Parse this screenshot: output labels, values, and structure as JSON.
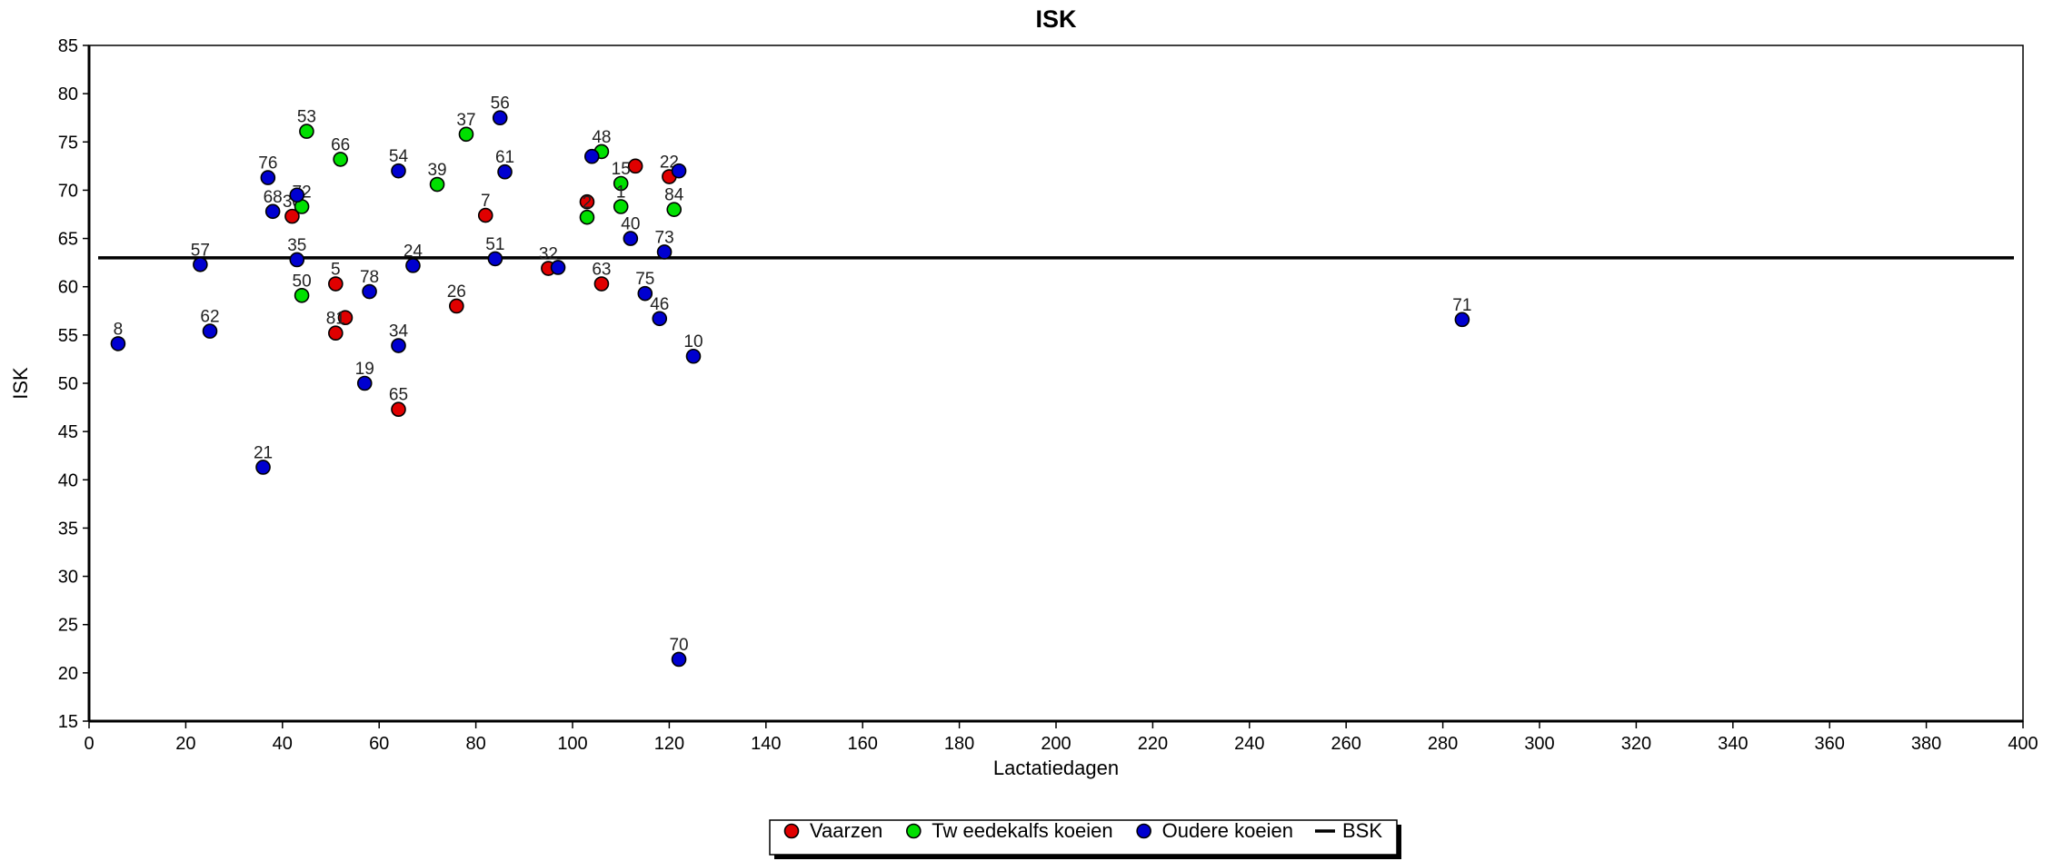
{
  "chart_data": {
    "type": "scatter",
    "title": "ISK",
    "xlabel": "Lactatiedagen",
    "ylabel": "ISK",
    "xlim": [
      0,
      400
    ],
    "ylim": [
      15,
      85
    ],
    "xticks": [
      0,
      20,
      40,
      60,
      80,
      100,
      120,
      140,
      160,
      180,
      200,
      220,
      240,
      260,
      280,
      300,
      320,
      340,
      360,
      380,
      400
    ],
    "yticks": [
      15,
      20,
      25,
      30,
      35,
      40,
      45,
      50,
      55,
      60,
      65,
      70,
      75,
      80,
      85
    ],
    "grid": false,
    "legend_position": "bottom-center",
    "reference_line": {
      "name": "BSK",
      "y": 63,
      "color": "#000000"
    },
    "series": [
      {
        "name": "Vaarzen",
        "color": "#e00000",
        "points": [
          {
            "label": "30",
            "x": 42,
            "y": 67.3
          },
          {
            "label": "5",
            "x": 51,
            "y": 60.3
          },
          {
            "label": "",
            "x": 53,
            "y": 56.8
          },
          {
            "label": "81",
            "x": 51,
            "y": 55.2
          },
          {
            "label": "65",
            "x": 64,
            "y": 47.3
          },
          {
            "label": "26",
            "x": 76,
            "y": 58
          },
          {
            "label": "7",
            "x": 82,
            "y": 67.4
          },
          {
            "label": "32",
            "x": 95,
            "y": 61.9
          },
          {
            "label": "",
            "x": 103,
            "y": 68.8
          },
          {
            "label": "63",
            "x": 106,
            "y": 60.3
          },
          {
            "label": "",
            "x": 113,
            "y": 72.5
          },
          {
            "label": "22",
            "x": 120,
            "y": 71.4
          }
        ]
      },
      {
        "name": "Tw eedekalfs koeien",
        "color": "#00e000",
        "points": [
          {
            "label": "53",
            "x": 45,
            "y": 76.1
          },
          {
            "label": "72",
            "x": 44,
            "y": 68.3
          },
          {
            "label": "50",
            "x": 44,
            "y": 59.1
          },
          {
            "label": "66",
            "x": 52,
            "y": 73.2
          },
          {
            "label": "39",
            "x": 72,
            "y": 70.6
          },
          {
            "label": "37",
            "x": 78,
            "y": 75.8
          },
          {
            "label": "2",
            "x": 103,
            "y": 67.2
          },
          {
            "label": "48",
            "x": 106,
            "y": 74
          },
          {
            "label": "15",
            "x": 110,
            "y": 70.7
          },
          {
            "label": "1",
            "x": 110,
            "y": 68.3
          },
          {
            "label": "84",
            "x": 121,
            "y": 68
          }
        ]
      },
      {
        "name": "Oudere koeien",
        "color": "#0000d0",
        "points": [
          {
            "label": "8",
            "x": 6,
            "y": 54.1
          },
          {
            "label": "57",
            "x": 23,
            "y": 62.3
          },
          {
            "label": "62",
            "x": 25,
            "y": 55.4
          },
          {
            "label": "21",
            "x": 36,
            "y": 41.3
          },
          {
            "label": "76",
            "x": 37,
            "y": 71.3
          },
          {
            "label": "68",
            "x": 38,
            "y": 67.8
          },
          {
            "label": "",
            "x": 43,
            "y": 69.5
          },
          {
            "label": "35",
            "x": 43,
            "y": 62.8
          },
          {
            "label": "19",
            "x": 57,
            "y": 50
          },
          {
            "label": "78",
            "x": 58,
            "y": 59.5
          },
          {
            "label": "54",
            "x": 64,
            "y": 72
          },
          {
            "label": "34",
            "x": 64,
            "y": 53.9
          },
          {
            "label": "24",
            "x": 67,
            "y": 62.2
          },
          {
            "label": "51",
            "x": 84,
            "y": 62.9
          },
          {
            "label": "56",
            "x": 85,
            "y": 77.5
          },
          {
            "label": "61",
            "x": 86,
            "y": 71.9
          },
          {
            "label": "",
            "x": 97,
            "y": 62
          },
          {
            "label": "",
            "x": 104,
            "y": 73.5
          },
          {
            "label": "40",
            "x": 112,
            "y": 65
          },
          {
            "label": "75",
            "x": 115,
            "y": 59.3
          },
          {
            "label": "46",
            "x": 118,
            "y": 56.7
          },
          {
            "label": "73",
            "x": 119,
            "y": 63.6
          },
          {
            "label": "",
            "x": 122,
            "y": 72
          },
          {
            "label": "70",
            "x": 122,
            "y": 21.4
          },
          {
            "label": "10",
            "x": 125,
            "y": 52.8
          },
          {
            "label": "71",
            "x": 284,
            "y": 56.6
          }
        ]
      }
    ]
  }
}
